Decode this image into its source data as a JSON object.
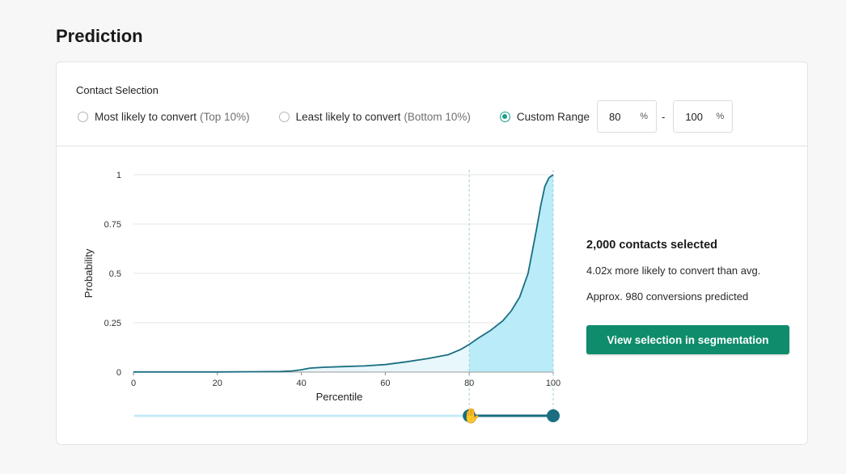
{
  "page": {
    "title": "Prediction"
  },
  "selection": {
    "label": "Contact Selection",
    "options": [
      {
        "label": "Most likely to convert",
        "hint": "(Top 10%)",
        "selected": false
      },
      {
        "label": "Least likely to convert",
        "hint": "(Bottom 10%)",
        "selected": false
      },
      {
        "label": "Custom Range",
        "hint": "",
        "selected": true
      }
    ],
    "range": {
      "min": "80",
      "max": "100",
      "unit": "%",
      "separator": "-"
    }
  },
  "summary": {
    "count": "2,000 contacts selected",
    "lift": "4.02x more likely to convert than avg.",
    "conversions": "Approx. 980 conversions predicted",
    "cta_label": "View selection in segmentation"
  },
  "colors": {
    "accent": "#1b9e8a",
    "cta": "#0f8c6c",
    "line": "#1a6e80",
    "fill_selected": "#b9ebf8",
    "fill_unselected": "#e7f7fb"
  },
  "chart_data": {
    "type": "area",
    "xlabel": "Percentile",
    "ylabel": "Probability",
    "xlim": [
      0,
      100
    ],
    "ylim": [
      0,
      1
    ],
    "x_ticks": [
      "0",
      "20",
      "40",
      "60",
      "80",
      "100"
    ],
    "y_ticks": [
      "0",
      "0.25",
      "0.5",
      "0.75",
      "1"
    ],
    "grid": true,
    "selected_range": [
      80,
      100
    ],
    "x": [
      0,
      10,
      20,
      30,
      35,
      38,
      40,
      42,
      45,
      50,
      55,
      60,
      65,
      70,
      75,
      78,
      80,
      82,
      85,
      88,
      90,
      92,
      94,
      96,
      97,
      98,
      99,
      100
    ],
    "y": [
      0.001,
      0.001,
      0.001,
      0.002,
      0.003,
      0.006,
      0.012,
      0.02,
      0.024,
      0.028,
      0.031,
      0.038,
      0.052,
      0.068,
      0.088,
      0.115,
      0.14,
      0.17,
      0.21,
      0.26,
      0.31,
      0.38,
      0.5,
      0.72,
      0.84,
      0.94,
      0.985,
      1.0
    ]
  }
}
